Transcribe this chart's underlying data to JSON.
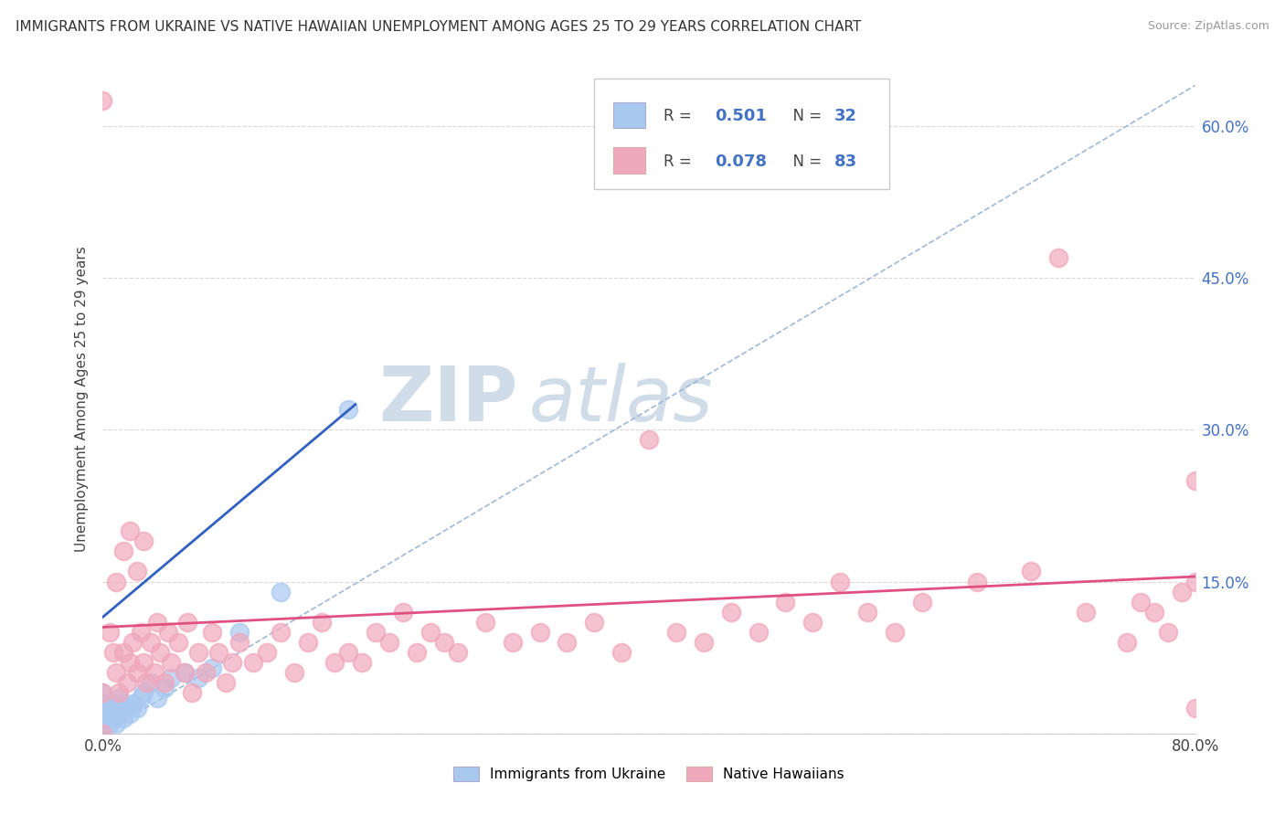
{
  "title": "IMMIGRANTS FROM UKRAINE VS NATIVE HAWAIIAN UNEMPLOYMENT AMONG AGES 25 TO 29 YEARS CORRELATION CHART",
  "source": "Source: ZipAtlas.com",
  "ylabel": "Unemployment Among Ages 25 to 29 years",
  "xlim": [
    0.0,
    0.82
  ],
  "ylim": [
    -0.02,
    0.7
  ],
  "plot_xlim": [
    0.0,
    0.8
  ],
  "plot_ylim": [
    0.0,
    0.66
  ],
  "x_ticks": [
    0.0,
    0.8
  ],
  "x_tick_labels": [
    "0.0%",
    "80.0%"
  ],
  "y_ticks": [
    0.0,
    0.15,
    0.3,
    0.45,
    0.6
  ],
  "y_tick_labels": [
    "",
    "15.0%",
    "30.0%",
    "45.0%",
    "60.0%"
  ],
  "watermark": "ZIPatlas",
  "ukraine_color": "#a8c8f0",
  "hawaii_color": "#f0a8bc",
  "ukraine_line_color": "#3060c0",
  "hawaii_line_color": "#e05080",
  "dash_line_color": "#a0b8d8",
  "background_color": "#ffffff",
  "grid_color": "#d8d8d8",
  "title_fontsize": 11,
  "axis_label_fontsize": 11,
  "tick_fontsize": 12,
  "watermark_color": "#d0dce8",
  "watermark_fontsize": 60,
  "legend_color_uk": "#a8c8f0",
  "legend_color_hw": "#f0a8bc"
}
